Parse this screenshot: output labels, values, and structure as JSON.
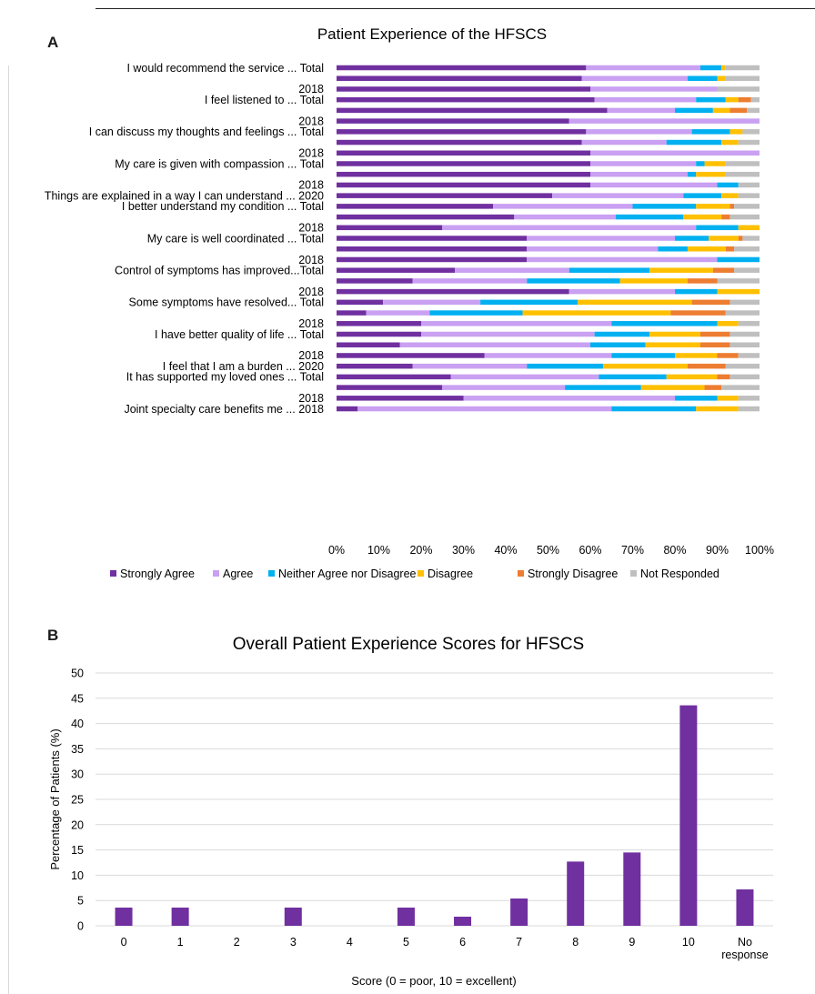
{
  "panels": {
    "a_label": "A",
    "b_label": "B"
  },
  "chart_data": [
    {
      "type": "bar",
      "orientation": "horizontal",
      "stacked": true,
      "title": "Patient Experience of the HFSCS",
      "xlim": [
        0,
        100
      ],
      "x_ticks": [
        "0%",
        "10%",
        "20%",
        "30%",
        "40%",
        "50%",
        "60%",
        "70%",
        "80%",
        "90%",
        "100%"
      ],
      "grid": false,
      "legend_position": "bottom",
      "series_names": [
        "Strongly Agree",
        "Agree",
        "Neither Agree nor Disagree",
        "Disagree",
        "Strongly Disagree",
        "Not Responded"
      ],
      "colors": [
        "#7030a0",
        "#c9a0f2",
        "#00b0f0",
        "#ffc000",
        "#ed7d31",
        "#bfbfbf"
      ],
      "rows": [
        {
          "label": "I would recommend the service ... Total",
          "values": [
            59,
            27,
            5,
            1,
            0,
            8
          ]
        },
        {
          "label": "",
          "values": [
            58,
            25,
            7,
            2,
            0,
            8
          ]
        },
        {
          "label": "2018",
          "values": [
            60,
            30,
            0,
            0,
            0,
            10
          ]
        },
        {
          "label": "I feel listened to ... Total",
          "values": [
            61,
            24,
            7,
            3,
            3,
            2
          ]
        },
        {
          "label": "",
          "values": [
            64,
            16,
            9,
            4,
            4,
            3
          ]
        },
        {
          "label": "2018",
          "values": [
            55,
            45,
            0,
            0,
            0,
            0
          ]
        },
        {
          "label": "I can discuss my thoughts and feelings ... Total",
          "values": [
            59,
            25,
            9,
            3,
            0,
            4
          ]
        },
        {
          "label": "",
          "values": [
            58,
            20,
            13,
            4,
            0,
            5
          ]
        },
        {
          "label": "2018",
          "values": [
            60,
            40,
            0,
            0,
            0,
            0
          ]
        },
        {
          "label": "My care is given with compassion ... Total",
          "values": [
            60,
            25,
            2,
            5,
            0,
            8
          ]
        },
        {
          "label": "",
          "values": [
            60,
            23,
            2,
            7,
            0,
            8
          ]
        },
        {
          "label": "2018",
          "values": [
            60,
            30,
            5,
            0,
            0,
            5
          ]
        },
        {
          "label": "Things are explained in a way I can understand ... 2020",
          "values": [
            51,
            31,
            9,
            4,
            0,
            5
          ]
        },
        {
          "label": "I better understand my condition ... Total",
          "values": [
            37,
            33,
            15,
            8,
            1,
            6
          ]
        },
        {
          "label": "",
          "values": [
            42,
            24,
            16,
            9,
            2,
            7
          ]
        },
        {
          "label": "2018",
          "values": [
            25,
            60,
            10,
            5,
            0,
            0
          ]
        },
        {
          "label": "My care is well coordinated ... Total",
          "values": [
            45,
            35,
            8,
            7,
            1,
            4
          ]
        },
        {
          "label": "",
          "values": [
            45,
            31,
            7,
            9,
            2,
            6
          ]
        },
        {
          "label": "2018",
          "values": [
            45,
            45,
            10,
            0,
            0,
            0
          ]
        },
        {
          "label": "Control of symptoms has improved...Total",
          "values": [
            28,
            27,
            19,
            15,
            5,
            6
          ]
        },
        {
          "label": "",
          "values": [
            18,
            27,
            22,
            16,
            7,
            10
          ]
        },
        {
          "label": "2018",
          "values": [
            55,
            25,
            10,
            10,
            0,
            0
          ]
        },
        {
          "label": "Some symptoms have resolved... Total",
          "values": [
            11,
            23,
            23,
            27,
            9,
            7
          ]
        },
        {
          "label": "",
          "values": [
            7,
            15,
            22,
            35,
            13,
            8
          ]
        },
        {
          "label": "2018",
          "values": [
            20,
            45,
            25,
            5,
            0,
            5
          ]
        },
        {
          "label": "I have better quality of life ... Total",
          "values": [
            20,
            41,
            13,
            12,
            7,
            7
          ]
        },
        {
          "label": "",
          "values": [
            15,
            45,
            13,
            13,
            7,
            7
          ]
        },
        {
          "label": "2018",
          "values": [
            35,
            30,
            15,
            10,
            5,
            5
          ]
        },
        {
          "label": "I feel that I am a burden ... 2020",
          "values": [
            18,
            27,
            18,
            20,
            9,
            8
          ]
        },
        {
          "label": "It has supported my loved ones  ... Total",
          "values": [
            27,
            35,
            16,
            12,
            3,
            7
          ]
        },
        {
          "label": "",
          "values": [
            25,
            29,
            18,
            15,
            4,
            9
          ]
        },
        {
          "label": "2018",
          "values": [
            30,
            50,
            10,
            5,
            0,
            5
          ]
        },
        {
          "label": "Joint specialty  care benefits me ... 2018",
          "values": [
            5,
            60,
            20,
            10,
            0,
            5
          ]
        }
      ]
    },
    {
      "type": "bar",
      "title": "Overall Patient Experience Scores for HFSCS",
      "xlabel": "Score (0 = poor, 10 = excellent)",
      "ylabel": "Percentage of Patients (%)",
      "ylim": [
        0,
        50
      ],
      "y_ticks": [
        0,
        5,
        10,
        15,
        20,
        25,
        30,
        35,
        40,
        45,
        50
      ],
      "grid": true,
      "categories": [
        "0",
        "1",
        "2",
        "3",
        "4",
        "5",
        "6",
        "7",
        "8",
        "9",
        "10",
        "No response"
      ],
      "values": [
        3.6,
        3.6,
        0,
        3.6,
        0,
        3.6,
        1.8,
        5.4,
        12.7,
        14.5,
        43.6,
        7.2
      ],
      "color": "#7030a0"
    }
  ]
}
